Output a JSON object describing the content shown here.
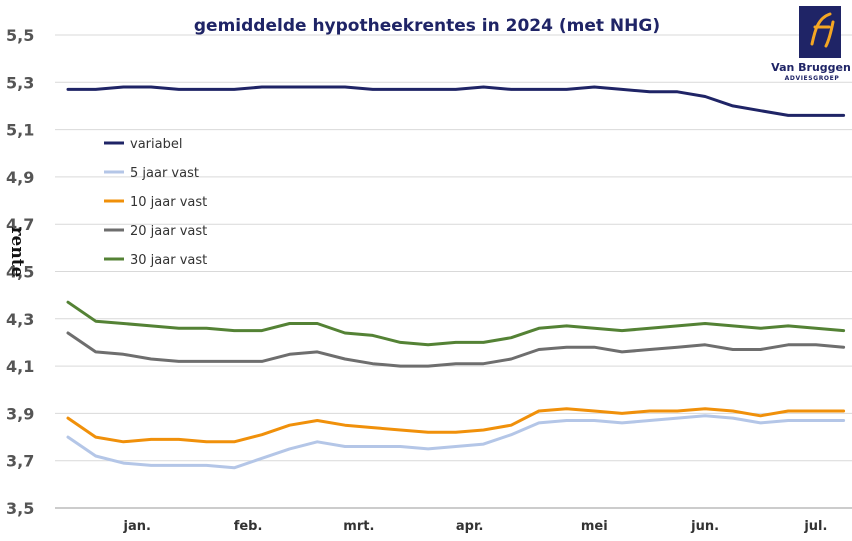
{
  "logo": {
    "name": "Van Bruggen",
    "sub": "ADVIESGROEP",
    "mark_color": "#1f2466",
    "accent_color": "#f5a623",
    "icon": "vb-logo-mark"
  },
  "chart_data": {
    "type": "line",
    "title": "gemiddelde hypotheekrentes in 2024 (met NHG)",
    "ylabel": "rente",
    "xlabel": "",
    "ylim": [
      3.5,
      5.5
    ],
    "yticks": [
      "5,5",
      "5,3",
      "5,1",
      "4,9",
      "4,7",
      "4,5",
      "4,3",
      "4,1",
      "3,9",
      "3,7",
      "3,5"
    ],
    "xtick_labels": [
      "jan.",
      "feb.",
      "mrt.",
      "apr.",
      "mei",
      "jun.",
      "jul."
    ],
    "xtick_positions": [
      2.5,
      6.5,
      10.5,
      14.5,
      19,
      23,
      27
    ],
    "x_count": 29,
    "grid": "horizontal",
    "legend_placement": "left",
    "series": [
      {
        "name": "variabel",
        "color": "#1f2466",
        "values": [
          5.27,
          5.27,
          5.28,
          5.28,
          5.27,
          5.27,
          5.27,
          5.28,
          5.28,
          5.28,
          5.28,
          5.27,
          5.27,
          5.27,
          5.27,
          5.28,
          5.27,
          5.27,
          5.27,
          5.28,
          5.27,
          5.26,
          5.26,
          5.24,
          5.2,
          5.18,
          5.16,
          5.16,
          5.16
        ]
      },
      {
        "name": "5 jaar vast",
        "color": "#b4c6e7",
        "values": [
          3.8,
          3.72,
          3.69,
          3.68,
          3.68,
          3.68,
          3.67,
          3.71,
          3.75,
          3.78,
          3.76,
          3.76,
          3.76,
          3.75,
          3.76,
          3.77,
          3.81,
          3.86,
          3.87,
          3.87,
          3.86,
          3.87,
          3.88,
          3.89,
          3.88,
          3.86,
          3.87,
          3.87,
          3.87
        ]
      },
      {
        "name": "10 jaar vast",
        "color": "#f0900a",
        "values": [
          3.88,
          3.8,
          3.78,
          3.79,
          3.79,
          3.78,
          3.78,
          3.81,
          3.85,
          3.87,
          3.85,
          3.84,
          3.83,
          3.82,
          3.82,
          3.83,
          3.85,
          3.91,
          3.92,
          3.91,
          3.9,
          3.91,
          3.91,
          3.92,
          3.91,
          3.89,
          3.91,
          3.91,
          3.91
        ]
      },
      {
        "name": "20 jaar vast",
        "color": "#6e6e6e",
        "values": [
          4.24,
          4.16,
          4.15,
          4.13,
          4.12,
          4.12,
          4.12,
          4.12,
          4.15,
          4.16,
          4.13,
          4.11,
          4.1,
          4.1,
          4.11,
          4.11,
          4.13,
          4.17,
          4.18,
          4.18,
          4.16,
          4.17,
          4.18,
          4.19,
          4.17,
          4.17,
          4.19,
          4.19,
          4.18
        ]
      },
      {
        "name": "30 jaar vast",
        "color": "#548235",
        "values": [
          4.37,
          4.29,
          4.28,
          4.27,
          4.26,
          4.26,
          4.25,
          4.25,
          4.28,
          4.28,
          4.24,
          4.23,
          4.2,
          4.19,
          4.2,
          4.2,
          4.22,
          4.26,
          4.27,
          4.26,
          4.25,
          4.26,
          4.27,
          4.28,
          4.27,
          4.26,
          4.27,
          4.26,
          4.25
        ]
      }
    ]
  }
}
